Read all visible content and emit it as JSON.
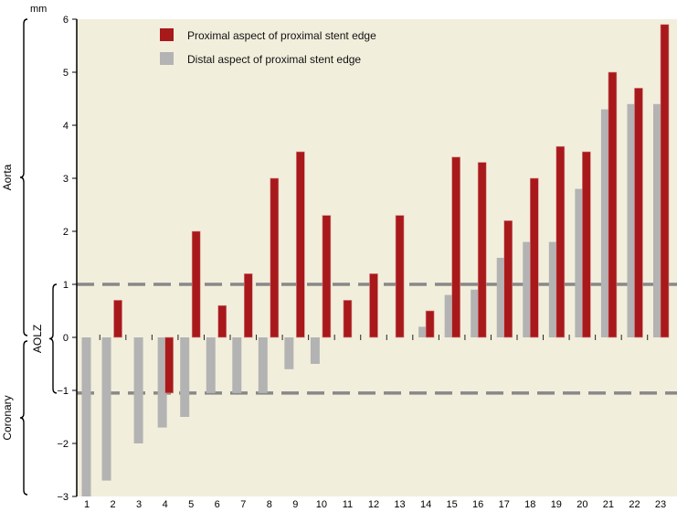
{
  "chart_data": {
    "type": "bar",
    "title": "",
    "xlabel": "",
    "ylabel": "mm",
    "ylim": [
      -3,
      6
    ],
    "yticks": [
      6,
      5,
      4,
      3,
      2,
      1,
      0,
      -1,
      -2,
      -3
    ],
    "ytick_labels": [
      "6",
      "5",
      "4",
      "3",
      "2",
      "1",
      "0",
      "−1",
      "−2",
      "−3"
    ],
    "categories": [
      "1",
      "2",
      "3",
      "4",
      "5",
      "6",
      "7",
      "8",
      "9",
      "10",
      "11",
      "12",
      "13",
      "14",
      "15",
      "16",
      "17",
      "18",
      "19",
      "20",
      "21",
      "22",
      "23"
    ],
    "series": [
      {
        "name": "Distal aspect of proximal stent edge",
        "color": "#b3b3b3",
        "values": [
          -3.0,
          -2.7,
          -2.0,
          -1.7,
          -1.5,
          -1.05,
          -1.05,
          -1.05,
          -0.6,
          -0.5,
          null,
          null,
          null,
          0.2,
          0.8,
          0.9,
          1.5,
          1.8,
          1.8,
          2.8,
          4.3,
          4.4,
          4.4
        ]
      },
      {
        "name": "Proximal aspect of proximal stent edge",
        "color": "#a8191b",
        "values": [
          null,
          0.7,
          null,
          -1.05,
          2.0,
          0.6,
          1.2,
          3.0,
          3.5,
          2.3,
          0.7,
          1.2,
          2.3,
          0.5,
          3.4,
          3.3,
          2.2,
          3.0,
          3.6,
          3.5,
          5.0,
          4.7,
          5.9
        ]
      }
    ],
    "reference_lines": [
      {
        "value": 1,
        "style": "dashed",
        "color": "#888888"
      },
      {
        "value": -1.05,
        "style": "dashed",
        "color": "#888888"
      }
    ],
    "legend": {
      "placement": "top-left",
      "entries": [
        {
          "label": "Proximal aspect of proximal stent edge",
          "color": "#a8191b"
        },
        {
          "label": "Distal aspect of proximal stent edge",
          "color": "#b3b3b3"
        }
      ]
    },
    "region_labels": [
      {
        "label": "Aorta",
        "range": [
          0,
          6
        ]
      },
      {
        "label": "AOLZ",
        "range": [
          -1.05,
          1
        ]
      },
      {
        "label": "Coronary",
        "range": [
          -3,
          0
        ]
      }
    ],
    "grid": false,
    "background": "#f2eedc"
  }
}
